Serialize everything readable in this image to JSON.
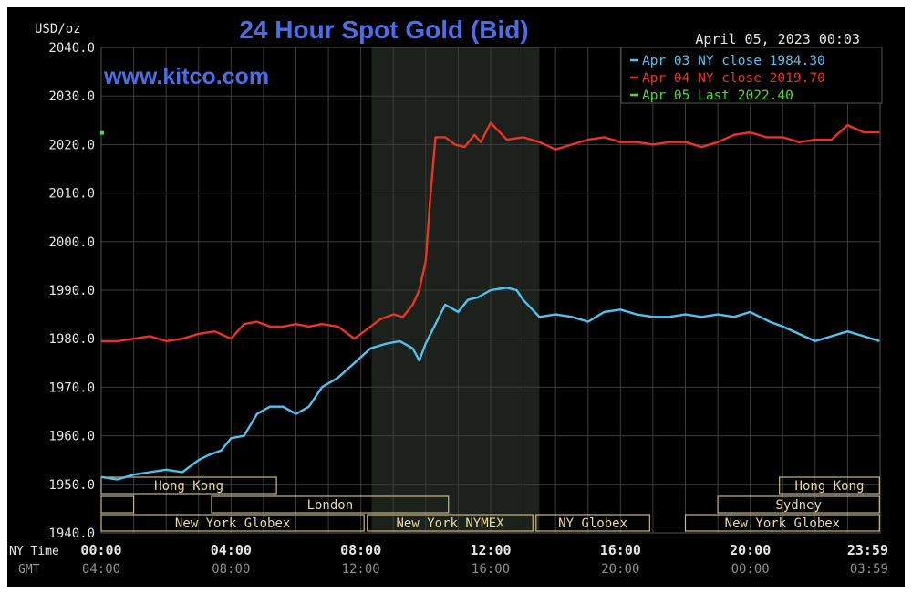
{
  "chart_data": {
    "type": "line",
    "title": "24 Hour Spot Gold (Bid)",
    "date_time": "April 05, 2023 00:03",
    "watermark": "www.kitco.com",
    "ylabel": "USD/oz",
    "ylim": [
      1940,
      2040
    ],
    "y_ticks": [
      "1940.0",
      "1950.0",
      "1960.0",
      "1970.0",
      "1980.0",
      "1990.0",
      "2000.0",
      "2010.0",
      "2020.0",
      "2030.0",
      "2040.0"
    ],
    "x_axis_row_labels": [
      "NY Time",
      "GMT"
    ],
    "x_ticks_ny": [
      "00:00",
      "04:00",
      "08:00",
      "12:00",
      "16:00",
      "20:00",
      "23:59"
    ],
    "x_ticks_gmt": [
      "04:00",
      "08:00",
      "12:00",
      "16:00",
      "20:00",
      "00:00",
      "03:59"
    ],
    "shaded_region": [
      "08:20",
      "13:30"
    ],
    "grid": true,
    "legend_position": "top-right",
    "legend": [
      {
        "text": "Apr 03 NY close 1984.30",
        "color": "#4fc3f0"
      },
      {
        "text": "Apr 04 NY close 2019.70",
        "color": "#ee3322"
      },
      {
        "text": "Apr 05 Last 2022.40",
        "color": "#4ddf2a"
      }
    ],
    "series": [
      {
        "name": "Apr 03 NY close 1984.30",
        "color": "#4fc3f0",
        "x_hours": [
          0,
          0.5,
          1,
          1.5,
          2,
          2.5,
          3,
          3.3,
          3.7,
          4,
          4.4,
          4.8,
          5.2,
          5.6,
          6,
          6.4,
          6.8,
          7.3,
          7.8,
          8.3,
          8.8,
          9.2,
          9.6,
          9.8,
          10,
          10.3,
          10.6,
          11,
          11.3,
          11.6,
          12,
          12.5,
          12.8,
          13,
          13.5,
          14,
          14.5,
          15,
          15.5,
          16,
          16.5,
          17,
          17.5,
          18,
          18.5,
          19,
          19.5,
          20,
          20.3,
          20.6,
          21,
          21.5,
          22,
          22.5,
          23,
          23.5,
          23.98
        ],
        "values": [
          1951.5,
          1951,
          1952,
          1952.5,
          1953,
          1952.5,
          1955,
          1956,
          1957,
          1959.5,
          1960,
          1964.5,
          1966,
          1966,
          1964.5,
          1966,
          1970,
          1972,
          1975,
          1978,
          1979,
          1979.5,
          1978,
          1975.5,
          1979,
          1983,
          1987,
          1985.5,
          1988,
          1988.5,
          1990,
          1990.5,
          1990,
          1988,
          1984.5,
          1985,
          1984.5,
          1983.5,
          1985.5,
          1986,
          1985,
          1984.5,
          1984.5,
          1985,
          1984.5,
          1985,
          1984.5,
          1985.5,
          1984.5,
          1983.5,
          1982.5,
          1981,
          1979.5,
          1980.5,
          1981.5,
          1980.5,
          1979.5
        ]
      },
      {
        "name": "Apr 04 NY close 2019.70",
        "color": "#ee3322",
        "x_hours": [
          0,
          0.5,
          1,
          1.5,
          2,
          2.5,
          3,
          3.5,
          4,
          4.4,
          4.8,
          5.2,
          5.6,
          6,
          6.4,
          6.8,
          7.3,
          7.8,
          8.2,
          8.6,
          9,
          9.3,
          9.6,
          9.8,
          10,
          10.15,
          10.3,
          10.6,
          10.9,
          11.2,
          11.5,
          11.7,
          12,
          12.5,
          13,
          13.5,
          14,
          14.5,
          15,
          15.5,
          16,
          16.5,
          17,
          17.5,
          18,
          18.5,
          19,
          19.5,
          20,
          20.5,
          21,
          21.5,
          22,
          22.5,
          23,
          23.5,
          23.98
        ],
        "values": [
          1979.5,
          1979.5,
          1980,
          1980.5,
          1979.5,
          1980,
          1981,
          1981.5,
          1980,
          1983,
          1983.5,
          1982.5,
          1982.5,
          1983,
          1982.5,
          1983,
          1982.5,
          1980,
          1982,
          1984,
          1985,
          1984.5,
          1987,
          1990,
          1996,
          2010,
          2021.5,
          2021.5,
          2020,
          2019.5,
          2022,
          2020.5,
          2024.5,
          2021,
          2021.5,
          2020.5,
          2019,
          2020,
          2021,
          2021.5,
          2020.5,
          2020.5,
          2020,
          2020.5,
          2020.5,
          2019.5,
          2020.5,
          2022,
          2022.5,
          2021.5,
          2021.5,
          2020.5,
          2021,
          2021,
          2024,
          2022.5,
          2022.5
        ]
      },
      {
        "name": "Apr 05 Last 2022.40",
        "color": "#4ddf2a",
        "x_hours": [
          0
        ],
        "values": [
          2022.4
        ]
      }
    ],
    "sessions": [
      {
        "label": "Hong Kong",
        "row": 0,
        "start": 0,
        "end": 5.4
      },
      {
        "label": "",
        "row": 1,
        "start": 0,
        "end": 1
      },
      {
        "label": "London",
        "row": 1,
        "start": 3.4,
        "end": 10.7
      },
      {
        "label": "New York Globex",
        "row": 2,
        "start": 0,
        "end": 8.1
      },
      {
        "label": "New York NYMEX",
        "row": 2,
        "start": 8.2,
        "end": 13.3
      },
      {
        "label": "NY Globex",
        "row": 2,
        "start": 13.4,
        "end": 16.9
      },
      {
        "label": "Hong Kong",
        "row": 0,
        "start": 20.9,
        "end": 23.98
      },
      {
        "label": "Sydney",
        "row": 1,
        "start": 19.0,
        "end": 23.98
      },
      {
        "label": "New York Globex",
        "row": 2,
        "start": 18.0,
        "end": 23.98
      }
    ]
  }
}
